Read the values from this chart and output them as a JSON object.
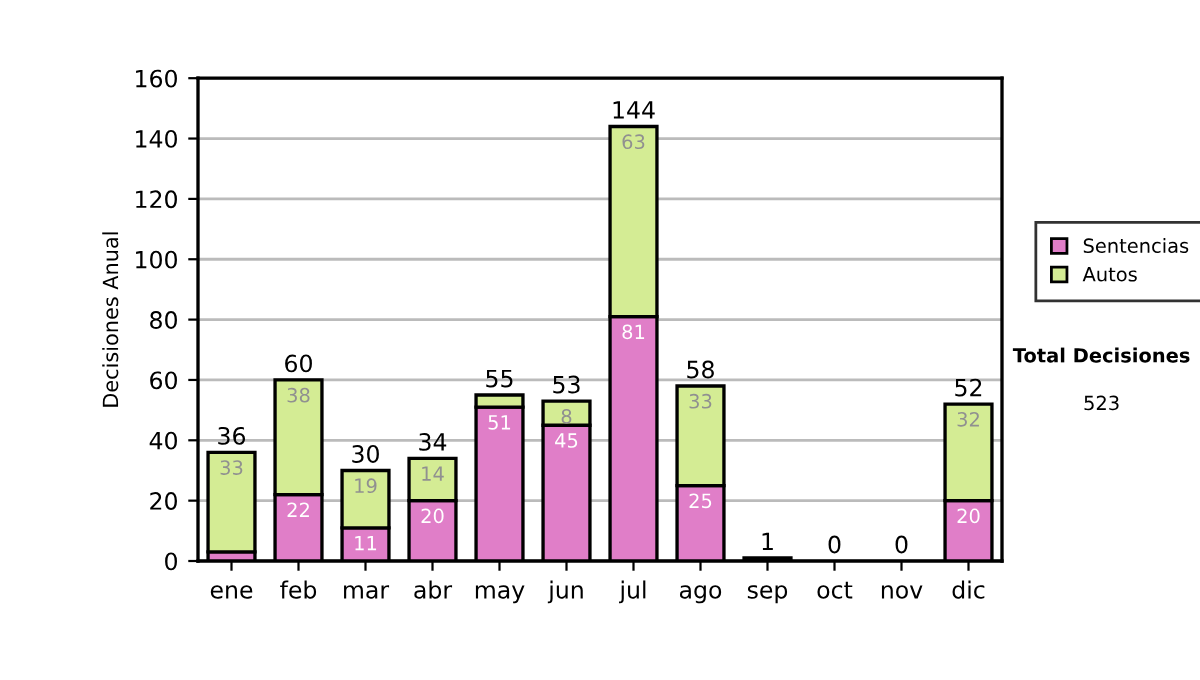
{
  "chart_data": {
    "type": "bar",
    "stacked": true,
    "ylabel": "Decisiones Anual",
    "categories": [
      "ene",
      "feb",
      "mar",
      "abr",
      "may",
      "jun",
      "jul",
      "ago",
      "sep",
      "oct",
      "nov",
      "dic"
    ],
    "series": [
      {
        "name": "Sentencias",
        "color": "#e07ec8",
        "values": [
          3,
          22,
          11,
          20,
          51,
          45,
          81,
          25,
          1,
          null,
          null,
          20
        ],
        "value_labels": [
          null,
          "22",
          "11",
          "20",
          "51",
          "45",
          "81",
          "25",
          null,
          null,
          null,
          "20"
        ]
      },
      {
        "name": "Autos",
        "color": "#d4ec94",
        "values": [
          33,
          38,
          19,
          14,
          4,
          8,
          63,
          33,
          null,
          null,
          null,
          32
        ],
        "value_labels": [
          "33",
          "38",
          "19",
          "14",
          null,
          "8",
          "63",
          "33",
          null,
          null,
          null,
          "32"
        ]
      }
    ],
    "totals": [
      "36",
      "60",
      "30",
      "34",
      "55",
      "53",
      "144",
      "58",
      "1",
      "0",
      "0",
      "52"
    ],
    "ylim": [
      0,
      160
    ],
    "yticks": [
      0,
      20,
      40,
      60,
      80,
      100,
      120,
      140,
      160
    ],
    "grid": "y",
    "legend": "right",
    "annotations": [
      "Total Decisiones",
      "523"
    ]
  }
}
